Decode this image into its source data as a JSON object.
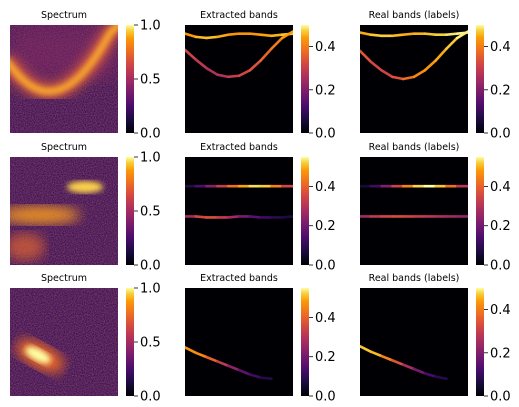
{
  "colormap": "inferno",
  "colors": {
    "low": "#000004",
    "mid": "#b73779",
    "high": "#fcffa4",
    "background": "#ffffff"
  },
  "chart_data": [
    {
      "type": "heatmap",
      "title": "Spectrum",
      "colorbar": {
        "range": [
          0,
          1
        ],
        "ticks": [
          "0.0",
          "0.5",
          "1.0"
        ]
      },
      "content": "broad bright band curving downward, with a dim diffuse background"
    },
    {
      "type": "heatmap",
      "title": "Extracted bands",
      "colorbar": {
        "range": [
          0,
          0.5
        ],
        "ticks": [
          "0.0",
          "0.2",
          "0.4"
        ]
      },
      "bands": [
        {
          "y": [
            0.08,
            0.11,
            0.12,
            0.11,
            0.09,
            0.08,
            0.08,
            0.09,
            0.1,
            0.09,
            0.08
          ],
          "values": [
            0.42,
            0.45,
            0.47,
            0.46,
            0.44,
            0.43,
            0.43,
            0.44,
            0.45,
            0.46,
            0.48
          ]
        },
        {
          "y": [
            0.23,
            0.32,
            0.4,
            0.46,
            0.48,
            0.47,
            0.42,
            0.33,
            0.22,
            0.12,
            0.06
          ],
          "values": [
            0.33,
            0.3,
            0.27,
            0.26,
            0.28,
            0.31,
            0.33,
            0.35,
            0.38,
            0.42,
            0.46
          ]
        }
      ]
    },
    {
      "type": "heatmap",
      "title": "Real bands (labels)",
      "colorbar": {
        "range": [
          0,
          0.5
        ],
        "ticks": [
          "0.0",
          "0.2",
          "0.4"
        ]
      },
      "bands": [
        {
          "y": [
            0.07,
            0.09,
            0.1,
            0.1,
            0.09,
            0.08,
            0.08,
            0.09,
            0.09,
            0.08,
            0.07
          ],
          "values": [
            0.44,
            0.46,
            0.48,
            0.47,
            0.45,
            0.45,
            0.46,
            0.47,
            0.48,
            0.49,
            0.5
          ]
        },
        {
          "y": [
            0.24,
            0.34,
            0.42,
            0.48,
            0.5,
            0.48,
            0.42,
            0.33,
            0.22,
            0.12,
            0.06
          ],
          "values": [
            0.36,
            0.33,
            0.31,
            0.32,
            0.36,
            0.4,
            0.43,
            0.44,
            0.46,
            0.48,
            0.5
          ]
        }
      ]
    },
    {
      "type": "heatmap",
      "title": "Spectrum",
      "colorbar": {
        "range": [
          0,
          1
        ],
        "ticks": [
          "0.0",
          "0.5",
          "1.0"
        ]
      },
      "content": "two horizontal bright blobs on a noisy purple background"
    },
    {
      "type": "heatmap",
      "title": "Extracted bands",
      "colorbar": {
        "range": [
          0,
          0.55
        ],
        "ticks": [
          "0.0",
          "0.2",
          "0.4"
        ]
      },
      "bands": [
        {
          "y": [
            0.27,
            0.27,
            0.27,
            0.27,
            0.27,
            0.27,
            0.27,
            0.27,
            0.27,
            0.27,
            0.27
          ],
          "values": [
            0.06,
            0.1,
            0.18,
            0.28,
            0.38,
            0.46,
            0.52,
            0.54,
            0.5,
            0.4,
            0.3
          ]
        },
        {
          "y": [
            0.55,
            0.55,
            0.56,
            0.56,
            0.56,
            0.55,
            0.55,
            0.56,
            0.56,
            0.56,
            0.55
          ],
          "values": [
            0.22,
            0.32,
            0.38,
            0.36,
            0.3,
            0.24,
            0.18,
            0.14,
            0.1,
            0.08,
            0.06
          ]
        }
      ]
    },
    {
      "type": "heatmap",
      "title": "Real bands (labels)",
      "colorbar": {
        "range": [
          0,
          0.55
        ],
        "ticks": [
          "0.0",
          "0.2",
          "0.4"
        ]
      },
      "bands": [
        {
          "y": [
            0.27,
            0.27,
            0.27,
            0.27,
            0.27,
            0.27,
            0.27,
            0.27,
            0.27,
            0.27,
            0.27
          ],
          "values": [
            0.04,
            0.08,
            0.16,
            0.28,
            0.4,
            0.5,
            0.55,
            0.55,
            0.48,
            0.36,
            0.26
          ]
        },
        {
          "y": [
            0.55,
            0.55,
            0.55,
            0.55,
            0.55,
            0.55,
            0.55,
            0.55,
            0.55,
            0.55,
            0.55
          ],
          "values": [
            0.24,
            0.3,
            0.34,
            0.36,
            0.36,
            0.34,
            0.32,
            0.3,
            0.28,
            0.26,
            0.24
          ]
        }
      ]
    },
    {
      "type": "heatmap",
      "title": "Spectrum",
      "colorbar": {
        "range": [
          0,
          1
        ],
        "ticks": [
          "0.0",
          "0.5",
          "1.0"
        ]
      },
      "content": "single bright elongated blob in lower-left on a noisy purple background"
    },
    {
      "type": "heatmap",
      "title": "Extracted bands",
      "colorbar": {
        "range": [
          0,
          0.55
        ],
        "ticks": [
          "0.0",
          "0.2",
          "0.4"
        ]
      },
      "bands": [
        {
          "x": [
            0.0,
            0.1,
            0.2,
            0.3,
            0.4,
            0.5,
            0.6,
            0.7,
            0.8
          ],
          "y": [
            0.55,
            0.6,
            0.64,
            0.68,
            0.72,
            0.76,
            0.8,
            0.83,
            0.84
          ],
          "values": [
            0.46,
            0.48,
            0.44,
            0.36,
            0.28,
            0.2,
            0.14,
            0.1,
            0.06
          ]
        }
      ]
    },
    {
      "type": "heatmap",
      "title": "Real bands (labels)",
      "colorbar": {
        "range": [
          0,
          0.5
        ],
        "ticks": [
          "0.0",
          "0.2",
          "0.4"
        ]
      },
      "bands": [
        {
          "x": [
            0.0,
            0.1,
            0.2,
            0.3,
            0.4,
            0.5,
            0.6,
            0.7,
            0.8
          ],
          "y": [
            0.54,
            0.59,
            0.63,
            0.67,
            0.71,
            0.75,
            0.79,
            0.82,
            0.84
          ],
          "values": [
            0.46,
            0.48,
            0.44,
            0.38,
            0.3,
            0.22,
            0.15,
            0.1,
            0.06
          ]
        }
      ]
    }
  ]
}
